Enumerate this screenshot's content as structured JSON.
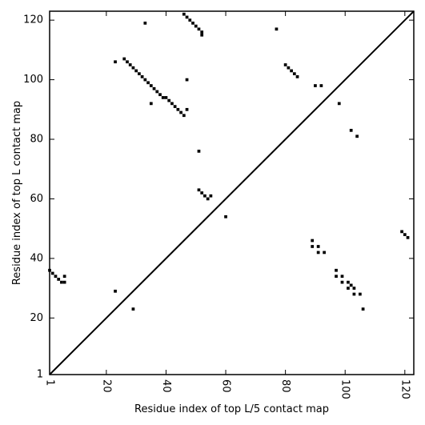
{
  "chart_data": {
    "type": "heatmap",
    "subtype": "contact-map",
    "title": "",
    "xlabel": "Residue index of top L/5 contact map",
    "ylabel": "Residue index of top L contact map",
    "xlim": [
      1,
      123
    ],
    "ylim": [
      1,
      123
    ],
    "x_ticks": [
      1,
      20,
      40,
      60,
      80,
      100,
      120
    ],
    "x_tick_labels": [
      "1",
      "20",
      "40",
      "60",
      "80",
      "100",
      "120"
    ],
    "y_ticks": [
      1,
      20,
      40,
      60,
      80,
      100,
      120
    ],
    "y_tick_labels": [
      "1",
      "20",
      "40",
      "60",
      "80",
      "100",
      "120"
    ],
    "diagonal": true,
    "grid": false,
    "mark_color": "#000000",
    "upper_contacts": [
      [
        46,
        122
      ],
      [
        47,
        121
      ],
      [
        48,
        120
      ],
      [
        49,
        119
      ],
      [
        50,
        118
      ],
      [
        51,
        117
      ],
      [
        52,
        116
      ],
      [
        52,
        115
      ],
      [
        33,
        119
      ],
      [
        77,
        117
      ],
      [
        23,
        106
      ],
      [
        26,
        107
      ],
      [
        27,
        106
      ],
      [
        28,
        105
      ],
      [
        29,
        104
      ],
      [
        30,
        103
      ],
      [
        31,
        102
      ],
      [
        32,
        101
      ],
      [
        33,
        100
      ],
      [
        34,
        99
      ],
      [
        35,
        98
      ],
      [
        36,
        97
      ],
      [
        37,
        96
      ],
      [
        38,
        95
      ],
      [
        47,
        100
      ],
      [
        39,
        94
      ],
      [
        40,
        94
      ],
      [
        41,
        93
      ],
      [
        42,
        92
      ],
      [
        43,
        91
      ],
      [
        44,
        90
      ],
      [
        45,
        89
      ],
      [
        46,
        88
      ],
      [
        47,
        90
      ],
      [
        35,
        92
      ],
      [
        80,
        105
      ],
      [
        81,
        104
      ],
      [
        82,
        103
      ],
      [
        83,
        102
      ],
      [
        84,
        101
      ],
      [
        90,
        98
      ],
      [
        92,
        98
      ],
      [
        98,
        92
      ],
      [
        102,
        83
      ],
      [
        104,
        81
      ],
      [
        51,
        76
      ],
      [
        51,
        63
      ],
      [
        52,
        62
      ],
      [
        53,
        61
      ],
      [
        54,
        60
      ],
      [
        55,
        61
      ],
      [
        60,
        54
      ]
    ],
    "lower_contacts": [
      [
        1,
        36
      ],
      [
        2,
        35
      ],
      [
        3,
        34
      ],
      [
        4,
        33
      ],
      [
        5,
        32
      ],
      [
        6,
        34
      ],
      [
        6,
        32
      ],
      [
        23,
        29
      ],
      [
        29,
        23
      ],
      [
        89,
        46
      ],
      [
        89,
        44
      ],
      [
        91,
        44
      ],
      [
        91,
        42
      ],
      [
        93,
        42
      ],
      [
        97,
        36
      ],
      [
        97,
        34
      ],
      [
        99,
        34
      ],
      [
        99,
        32
      ],
      [
        101,
        32
      ],
      [
        101,
        30
      ],
      [
        102,
        31
      ],
      [
        103,
        30
      ],
      [
        103,
        28
      ],
      [
        105,
        28
      ],
      [
        106,
        23
      ],
      [
        119,
        49
      ],
      [
        120,
        48
      ],
      [
        121,
        47
      ]
    ]
  }
}
